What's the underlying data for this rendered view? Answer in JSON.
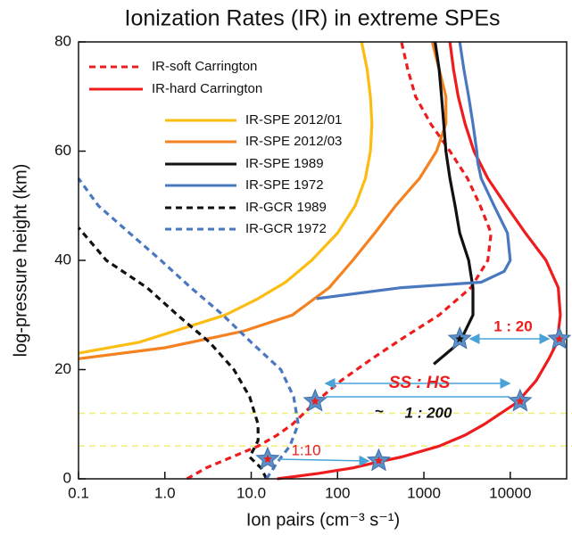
{
  "chart_data": {
    "type": "line",
    "title": "Ionization  Rates (IR) in extreme SPEs",
    "x_label": "Ion pairs (cm⁻³ s⁻¹)",
    "y_label": "log-pressure height (km)",
    "x_scale": "log",
    "xlim": [
      0.1,
      45000
    ],
    "xticks": [
      0.1,
      {
        "value": 1,
        "label": "1.0"
      },
      {
        "value": 10,
        "label": "10.0"
      },
      100,
      1000,
      10000
    ],
    "ylim": [
      0,
      80
    ],
    "yticks": [
      0,
      20,
      40,
      60,
      80
    ],
    "series": [
      {
        "name": "IR-soft Carrington",
        "color": "#ee1c1c",
        "dash": true,
        "x": [
          1.8,
          3,
          6,
          12,
          20,
          30,
          55,
          110,
          250,
          600,
          1500,
          3500,
          5500,
          6000,
          4500,
          3200,
          2000,
          1200,
          800,
          650,
          550
        ],
        "values": [
          0,
          2,
          4,
          6,
          8,
          10,
          14,
          18,
          22,
          26,
          30,
          35,
          40,
          45,
          50,
          55,
          60,
          65,
          70,
          75,
          80
        ]
      },
      {
        "name": "IR-hard Carrington",
        "color": "#ee1c1c",
        "dash": false,
        "x": [
          20,
          60,
          150,
          280,
          550,
          1500,
          3000,
          5000,
          12000,
          20000,
          28000,
          35000,
          38000,
          36000,
          26000,
          15000,
          9000,
          5500,
          3800,
          3000,
          2500,
          2200,
          2000
        ],
        "values": [
          0,
          1,
          2,
          3,
          4,
          6,
          8,
          10,
          14,
          18,
          22,
          25,
          30,
          35,
          40,
          45,
          50,
          55,
          60,
          65,
          70,
          75,
          80
        ]
      },
      {
        "name": "IR-SPE 2012/01",
        "color": "#fbbd12",
        "dash": false,
        "x": [
          0.1,
          0.5,
          2,
          5,
          12,
          25,
          50,
          100,
          160,
          210,
          240,
          250,
          240,
          220,
          190
        ],
        "values": [
          23,
          25,
          28,
          30,
          33,
          36,
          40,
          45,
          50,
          55,
          60,
          65,
          70,
          75,
          80
        ]
      },
      {
        "name": "IR-SPE 2012/03",
        "color": "#f58220",
        "dash": false,
        "x": [
          0.1,
          1,
          8,
          30,
          80,
          150,
          270,
          470,
          890,
          1400,
          1800,
          1800,
          1500,
          1250
        ],
        "values": [
          22,
          24,
          27,
          30,
          35,
          40,
          45,
          50,
          55,
          60,
          65,
          70,
          75,
          80
        ]
      },
      {
        "name": "IR-SPE 1989",
        "color": "#111111",
        "dash": false,
        "x": [
          1300,
          2600,
          3700,
          3700,
          3300,
          2600,
          2300,
          2000,
          1800,
          1700,
          1600,
          1500,
          1350
        ],
        "values": [
          21,
          25,
          30,
          35,
          40,
          45,
          50,
          55,
          60,
          65,
          70,
          75,
          80
        ]
      },
      {
        "name": "IR-SPE 1972",
        "color": "#4a78c0",
        "dash": false,
        "x": [
          57,
          550,
          4600,
          8500,
          10000,
          9300,
          6500,
          4600,
          4200,
          4100,
          3700,
          3300,
          2900,
          2600
        ],
        "values": [
          33,
          35,
          36,
          38,
          40,
          45,
          50,
          55,
          58,
          60,
          65,
          70,
          75,
          80
        ]
      },
      {
        "name": "IR-GCR 1989",
        "color": "#111111",
        "dash": true,
        "x": [
          15,
          13,
          9.6,
          12,
          12,
          9.6,
          6.3,
          3.3,
          1.4,
          0.62,
          0.21,
          0.1
        ],
        "values": [
          0,
          2,
          4,
          7,
          10,
          15,
          20,
          25,
          30,
          35,
          40,
          46
        ]
      },
      {
        "name": "IR-GCR 1972",
        "color": "#4a78c0",
        "dash": true,
        "x": [
          15,
          20,
          28,
          35,
          31,
          22,
          10,
          4.7,
          2,
          0.9,
          0.39,
          0.17,
          0.1
        ],
        "values": [
          0,
          3,
          6,
          10,
          15,
          20,
          25,
          30,
          35,
          40,
          45,
          50,
          55
        ]
      }
    ],
    "reference_lines": [
      12,
      6
    ],
    "reference_color": "#eeee77",
    "markers": [
      {
        "x": 2600,
        "y": 25.6,
        "color": "#111111"
      },
      {
        "x": 37000,
        "y": 25.6,
        "color": "#ee1c1c"
      },
      {
        "x": 55,
        "y": 14.2,
        "color": "#ee1c1c"
      },
      {
        "x": 13000,
        "y": 14.2,
        "color": "#ee1c1c"
      },
      {
        "x": 15.5,
        "y": 3.6,
        "color": "#ee1c1c"
      },
      {
        "x": 300,
        "y": 3.3,
        "color": "#ee1c1c"
      }
    ],
    "annotations": [
      "1 : 20",
      "SS : HS",
      "~",
      "1 : 200",
      "1:10"
    ]
  }
}
